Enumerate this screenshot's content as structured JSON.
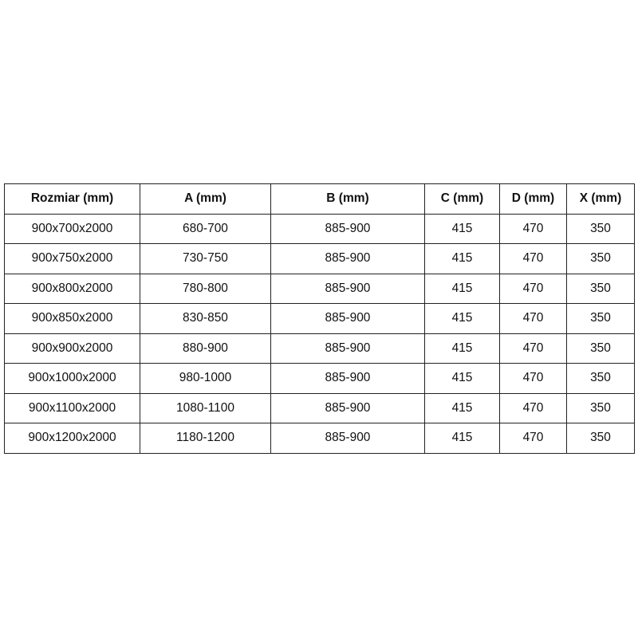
{
  "headers": [
    "Rozmiar (mm)",
    "A (mm)",
    "B (mm)",
    "C (mm)",
    "D (mm)",
    "X (mm)"
  ],
  "rows": [
    [
      "900x700x2000",
      "680-700",
      "885-900",
      "415",
      "470",
      "350"
    ],
    [
      "900x750x2000",
      "730-750",
      "885-900",
      "415",
      "470",
      "350"
    ],
    [
      "900x800x2000",
      "780-800",
      "885-900",
      "415",
      "470",
      "350"
    ],
    [
      "900x850x2000",
      "830-850",
      "885-900",
      "415",
      "470",
      "350"
    ],
    [
      "900x900x2000",
      "880-900",
      "885-900",
      "415",
      "470",
      "350"
    ],
    [
      "900x1000x2000",
      "980-1000",
      "885-900",
      "415",
      "470",
      "350"
    ],
    [
      "900x1100x2000",
      "1080-1100",
      "885-900",
      "415",
      "470",
      "350"
    ],
    [
      "900x1200x2000",
      "1180-1200",
      "885-900",
      "415",
      "470",
      "350"
    ]
  ]
}
